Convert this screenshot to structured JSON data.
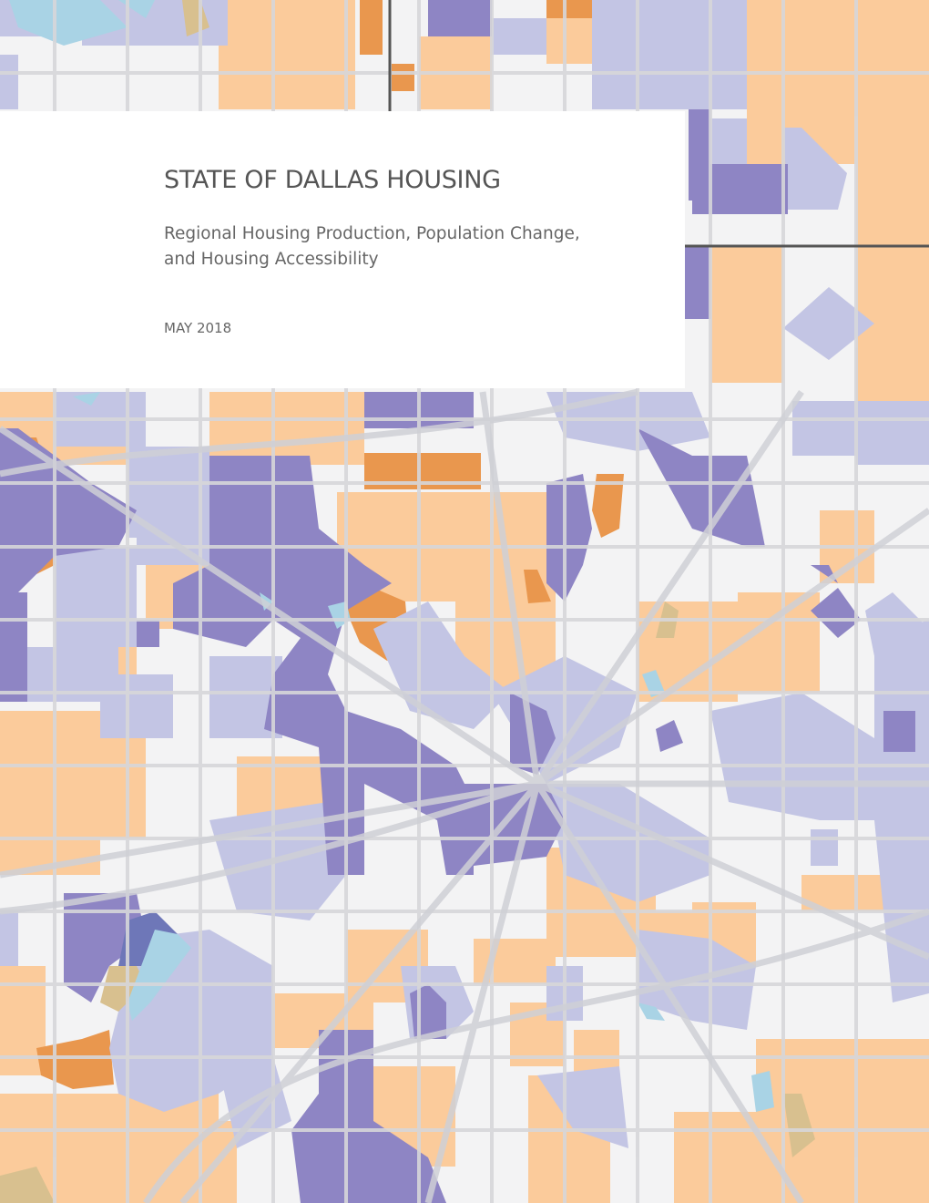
{
  "cover": {
    "title": "STATE OF DALLAS HOUSING",
    "subtitle_line1": "Regional Housing Production, Population Change,",
    "subtitle_line2": "and Housing Accessibility",
    "date": "MAY 2018"
  },
  "map": {
    "description_icon": "choropleth-map-background",
    "colors": {
      "background": "#f3f3f4",
      "light_orange": "#fbcb9b",
      "dark_orange": "#e9974e",
      "light_purple": "#c3c5e4",
      "dark_purple": "#8e85c4",
      "deep_blue": "#6e77b8",
      "water": "#a9d3e5",
      "tan": "#d8c08f",
      "roads": "#d7d7da",
      "boundary": "#555555"
    }
  }
}
